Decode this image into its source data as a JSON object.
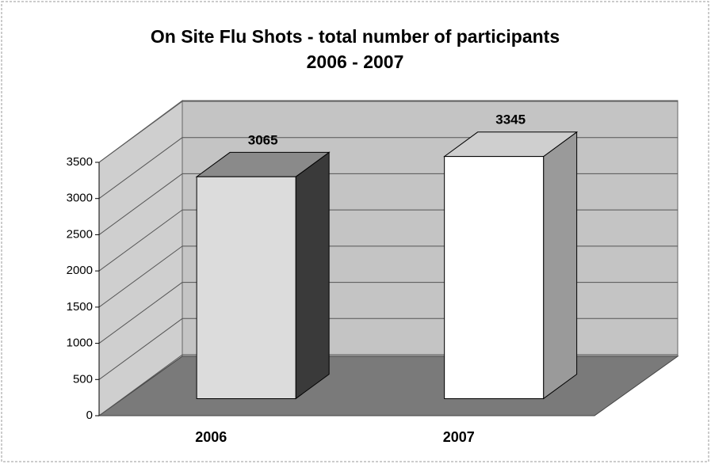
{
  "chart_data": {
    "type": "bar3d",
    "title": "On Site Flu Shots - total number of participants",
    "subtitle": "2006 - 2007",
    "categories": [
      "2006",
      "2007"
    ],
    "values": [
      3065,
      3345
    ],
    "colors": [
      "#dcdcdc",
      "#ffffff"
    ],
    "ylim": [
      0,
      3500
    ],
    "yticks": [
      0,
      500,
      1000,
      1500,
      2000,
      2500,
      3000,
      3500
    ],
    "grid": true
  }
}
